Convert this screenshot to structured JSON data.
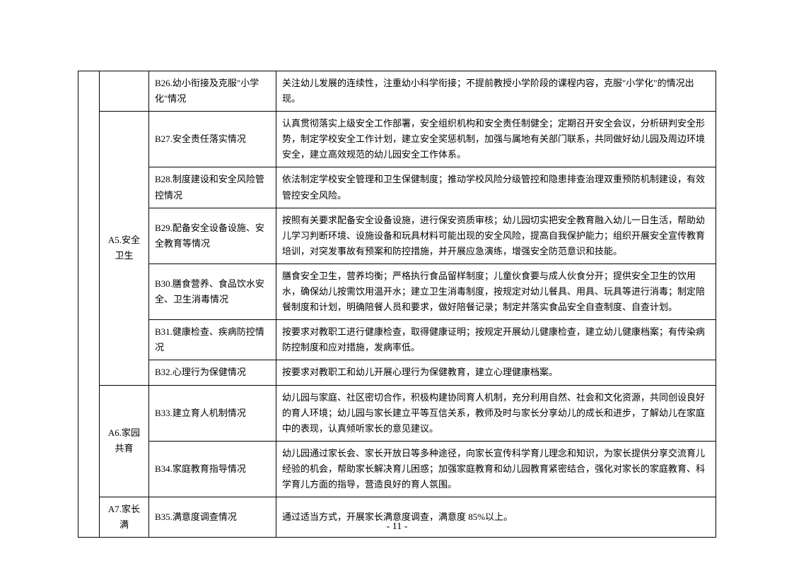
{
  "table": {
    "col_widths": {
      "a": 30,
      "b": 70,
      "c": 180
    },
    "rows": [
      {
        "a": "",
        "a_rowspan": 10,
        "a_show": true,
        "b": "",
        "b_rowspan": 1,
        "b_show": true,
        "c": "B26.幼小衔接及克服\"小学化\"情况",
        "d": "关注幼儿发展的连续性，注重幼小科学衔接；不提前教授小学阶段的课程内容，克服\"小学化\"的情况出现。"
      },
      {
        "b": "A5.安全卫生",
        "b_rowspan": 6,
        "b_show": true,
        "c": "B27.安全责任落实情况",
        "d": "认真贯彻落实上级安全工作部署，安全组织机构和安全责任制健全；定期召开安全会议，分析研判安全形势，制定学校安全工作计划，建立安全奖惩机制，加强与属地有关部门联系，共同做好幼儿园及周边环境安全，建立高效规范的幼儿园安全工作体系。"
      },
      {
        "b_show": false,
        "c": "B28.制度建设和安全风险管控情况",
        "d": "依法制定学校安全管理和卫生保健制度；推动学校风险分级管控和隐患排查治理双重预防机制建设，有效管控安全风险。"
      },
      {
        "b_show": false,
        "c": "B29.配备安全设备设施、安全教育等情况",
        "d": "按照有关要求配备安全设备设施，进行保安资质审核；幼儿园切实把安全教育融入幼儿一日生活，帮助幼儿学习判断环境、设施设备和玩具材料可能出现的安全风险，提高自我保护能力；组织开展安全宣传教育培训，对突发事故有预案和防控措施，并开展应急演练，增强安全防范意识和技能。"
      },
      {
        "b_show": false,
        "c": "B30.膳食营养、食品饮水安全、卫生消毒情况",
        "d": "膳食安全卫生，营养均衡；严格执行食品留样制度；儿童伙食要与成人伙食分开；提供安全卫生的饮用水，确保幼儿按需饮用温开水；建立卫生消毒制度，按规定对幼儿餐具、用具、玩具等进行消毒；制定陪餐制度和计划，明确陪餐人员和要求，做好陪餐记录；制定并落实食品安全自查制度、自查计划。"
      },
      {
        "b_show": false,
        "c": "B31.健康检查、疾病防控情况",
        "d": "按要求对教职工进行健康检查，取得健康证明；按规定开展幼儿健康检查，建立幼儿健康档案；有传染病防控制度和应对措施，发病率低。"
      },
      {
        "b_show": false,
        "c": "B32.心理行为保健情况",
        "d": "按要求对教职工和幼儿开展心理行为保健教育，建立心理健康档案。"
      },
      {
        "b": "A6.家园共育",
        "b_rowspan": 2,
        "b_show": true,
        "c": "B33.建立育人机制情况",
        "d": "幼儿园与家庭、社区密切合作，积极构建协同育人机制，充分利用自然、社会和文化资源，共同创设良好的育人环境；幼儿园与家长建立平等互信关系，教师及时与家长分享幼儿的成长和进步，了解幼儿在家庭中的表现，认真倾听家长的意见建议。"
      },
      {
        "b_show": false,
        "c": "B34.家庭教育指导情况",
        "d": "幼儿园通过家长会、家长开放日等多种途径，向家长宣传科学育儿理念和知识，为家长提供分享交流育儿经验的机会，帮助家长解决育儿困惑；加强家庭教育和幼儿园教育紧密结合，强化对家长的家庭教育、科学育儿方面的指导，营造良好的育人氛围。"
      },
      {
        "b": "A7.家长满",
        "b_rowspan": 1,
        "b_show": true,
        "c": "B35.满意度调查情况",
        "d": "通过适当方式，开展家长满意度调查，满意度 85%以上。"
      }
    ]
  },
  "page_number": "- 11 -"
}
